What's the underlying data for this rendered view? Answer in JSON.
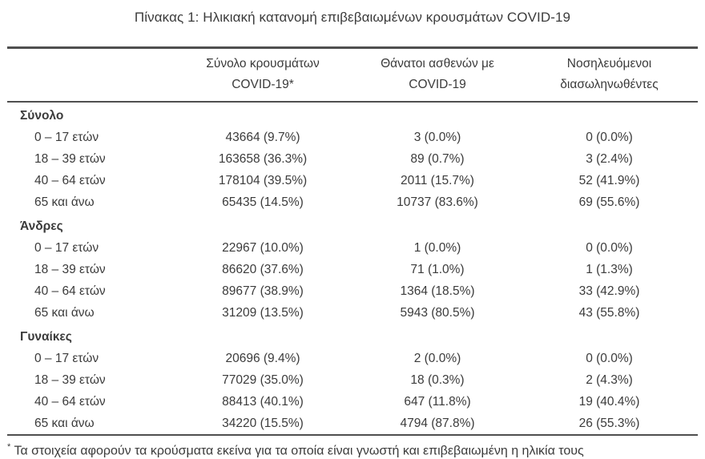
{
  "colors": {
    "text": "#3b3b3b",
    "rule": "#4f4f4f",
    "background": "#ffffff"
  },
  "chart_data": {
    "type": "table",
    "title": "Πίνακας 1: Ηλικιακή κατανομή επιβεβαιωμένων κρουσμάτων COVID-19",
    "columns": [
      {
        "line1": "Σύνολο κρουσμάτων",
        "line2": "COVID-19*"
      },
      {
        "line1": "Θάνατοι ασθενών με",
        "line2": "COVID-19"
      },
      {
        "line1": "Νοσηλευόμενοι",
        "line2": "διασωληνωθέντες"
      }
    ],
    "sections": [
      {
        "header": "Σύνολο",
        "rows": [
          {
            "label": "0 – 17 ετών",
            "values": [
              "43664 (9.7%)",
              "3 (0.0%)",
              "0 (0.0%)"
            ]
          },
          {
            "label": "18 – 39 ετών",
            "values": [
              "163658 (36.3%)",
              "89 (0.7%)",
              "3 (2.4%)"
            ]
          },
          {
            "label": "40 – 64 ετών",
            "values": [
              "178104 (39.5%)",
              "2011 (15.7%)",
              "52 (41.9%)"
            ]
          },
          {
            "label": "65 και άνω",
            "values": [
              "65435 (14.5%)",
              "10737 (83.6%)",
              "69 (55.6%)"
            ]
          }
        ]
      },
      {
        "header": "Άνδρες",
        "rows": [
          {
            "label": "0 – 17 ετών",
            "values": [
              "22967 (10.0%)",
              "1 (0.0%)",
              "0 (0.0%)"
            ]
          },
          {
            "label": "18 – 39 ετών",
            "values": [
              "86620 (37.6%)",
              "71 (1.0%)",
              "1 (1.3%)"
            ]
          },
          {
            "label": "40 – 64 ετών",
            "values": [
              "89677 (38.9%)",
              "1364 (18.5%)",
              "33 (42.9%)"
            ]
          },
          {
            "label": "65 και άνω",
            "values": [
              "31209 (13.5%)",
              "5943 (80.5%)",
              "43 (55.8%)"
            ]
          }
        ]
      },
      {
        "header": "Γυναίκες",
        "rows": [
          {
            "label": "0 – 17 ετών",
            "values": [
              "20696 (9.4%)",
              "2 (0.0%)",
              "0 (0.0%)"
            ]
          },
          {
            "label": "18 – 39 ετών",
            "values": [
              "77029 (35.0%)",
              "18 (0.3%)",
              "2 (4.3%)"
            ]
          },
          {
            "label": "40 – 64 ετών",
            "values": [
              "88413 (40.1%)",
              "647 (11.8%)",
              "19 (40.4%)"
            ]
          },
          {
            "label": "65 και άνω",
            "values": [
              "34220 (15.5%)",
              "4794 (87.8%)",
              "26 (55.3%)"
            ]
          }
        ]
      }
    ],
    "footnote_marker": "*",
    "footnote_text": "Τα στοιχεία αφορούν τα κρούσματα εκείνα για τα οποία είναι γνωστή και επιβεβαιωμένη η ηλικία τους"
  }
}
